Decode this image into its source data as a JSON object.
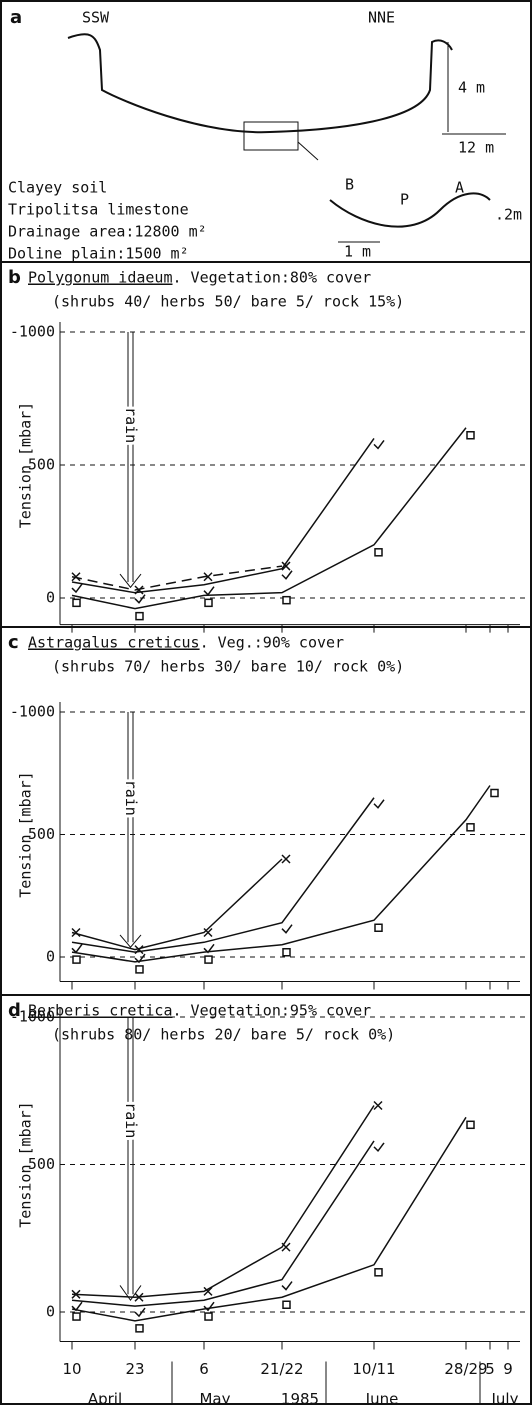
{
  "panel_a": {
    "letter": "a",
    "left": "SSW",
    "right": "NNE",
    "depth": "4 m",
    "width": "12 m",
    "zone_b": "B",
    "zone_p": "P",
    "zone_a": "A",
    "small_depth": ".2m",
    "small_width": "1 m",
    "lines": [
      "Clayey soil",
      "Tripolitsa limestone",
      "Drainage area:12800 m²",
      "Doline plain:1500 m²"
    ]
  },
  "chart_data": [
    {
      "type": "line",
      "letter": "b",
      "title": "Polygonum idaeum",
      "subtitle": ". Vegetation:80% cover",
      "note": "(shrubs 40/ herbs 50/ bare 5/ rock 15%)",
      "ylabel": "Tension [mbar]",
      "annotation": "rain",
      "ylim": [
        -100,
        1000
      ],
      "yticks": [
        {
          "value": 1000,
          "label": "-1000"
        },
        500,
        0
      ],
      "grid": true,
      "series": [
        {
          "marker": "x",
          "dash": true,
          "values": [
            80,
            30,
            80,
            120,
            null,
            null,
            null,
            null
          ]
        },
        {
          "marker": "v",
          "dash": false,
          "values": [
            60,
            20,
            50,
            110,
            600,
            null,
            null,
            null
          ]
        },
        {
          "marker": "square",
          "dash": false,
          "values": [
            10,
            -40,
            10,
            20,
            200,
            640,
            null,
            null
          ]
        }
      ]
    },
    {
      "type": "line",
      "letter": "c",
      "title": "Astragalus creticus",
      "subtitle": ". Veg.:90% cover",
      "note": "(shrubs 70/ herbs 30/ bare 10/ rock 0%)",
      "ylabel": "Tension [mbar]",
      "annotation": "rain",
      "ylim": [
        -100,
        1000
      ],
      "yticks": [
        {
          "value": 1000,
          "label": "-1000"
        },
        500,
        0
      ],
      "grid": true,
      "series": [
        {
          "marker": "x",
          "dash": false,
          "values": [
            100,
            30,
            100,
            400,
            null,
            null,
            null,
            null
          ]
        },
        {
          "marker": "v",
          "dash": false,
          "values": [
            60,
            20,
            60,
            140,
            650,
            null,
            null,
            null
          ]
        },
        {
          "marker": "square",
          "dash": false,
          "values": [
            20,
            -20,
            20,
            50,
            150,
            560,
            700,
            null
          ]
        }
      ]
    },
    {
      "type": "line",
      "letter": "d",
      "title": "Berberis cretica",
      "subtitle": ". Vegetation:95% cover",
      "note": "(shrubs 80/ herbs 20/ bare 5/ rock 0%)",
      "ylabel": "Tension [mbar]",
      "annotation": "rain",
      "ylim": [
        -100,
        1000
      ],
      "yticks": [
        {
          "value": 1000,
          "label": "-1000"
        },
        500,
        0
      ],
      "grid": true,
      "categories": [
        "10",
        "23",
        "6",
        "21/22",
        "10/11",
        "28/29",
        "5",
        "9"
      ],
      "months": [
        "April",
        "May",
        "1985",
        "June",
        "July"
      ],
      "series": [
        {
          "marker": "x",
          "dash": false,
          "values": [
            60,
            50,
            70,
            220,
            700,
            null,
            null,
            null
          ]
        },
        {
          "marker": "v",
          "dash": false,
          "values": [
            40,
            20,
            40,
            110,
            580,
            null,
            null,
            null
          ]
        },
        {
          "marker": "square",
          "dash": false,
          "values": [
            10,
            -30,
            10,
            50,
            160,
            660,
            null,
            null
          ]
        }
      ]
    }
  ]
}
